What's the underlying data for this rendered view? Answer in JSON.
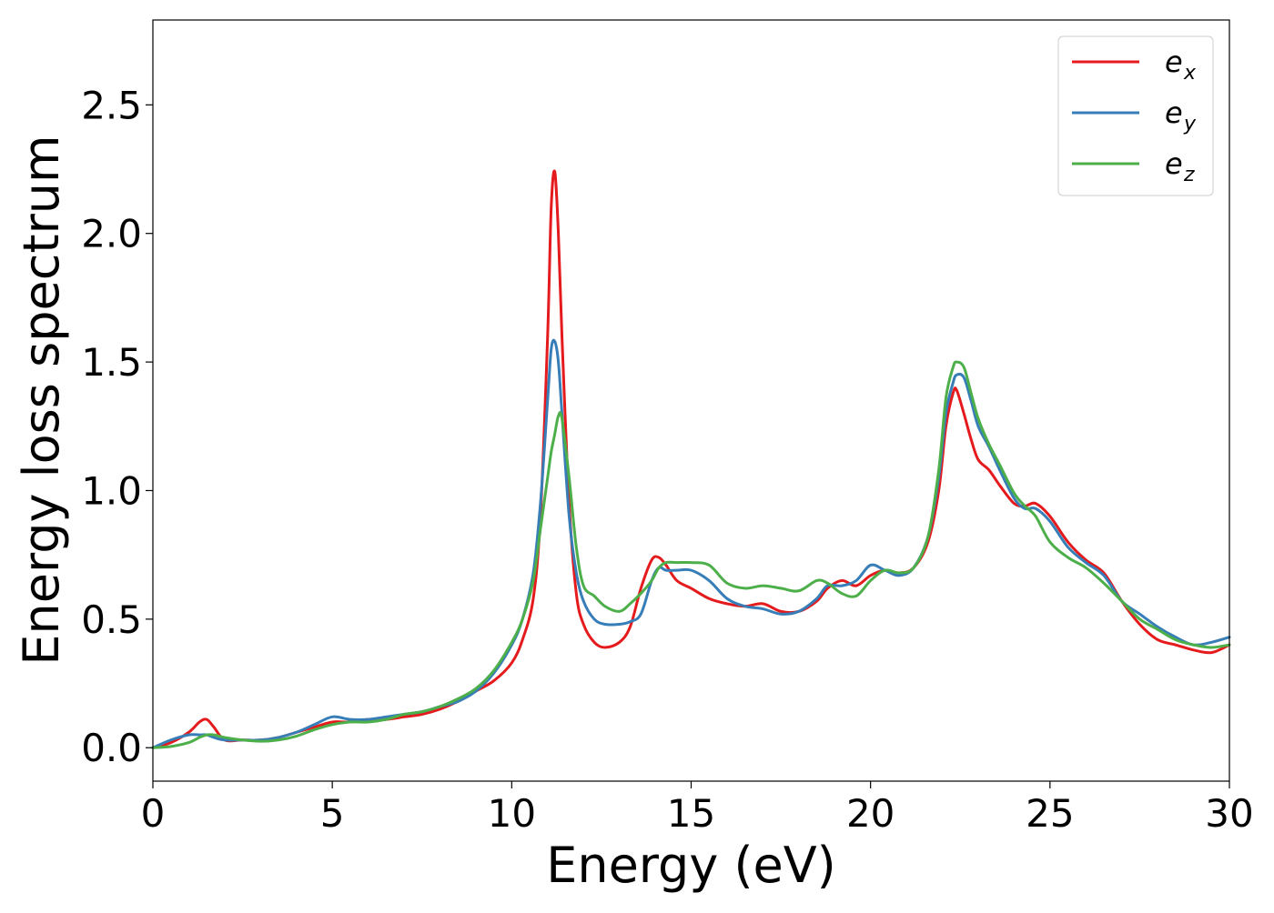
{
  "chart_data": {
    "type": "line",
    "title": "",
    "xlabel": "Energy (eV)",
    "ylabel": "Energy loss spectrum",
    "xlim": [
      0,
      30
    ],
    "ylim": [
      -0.13,
      2.83
    ],
    "xticks": [
      0,
      5,
      10,
      15,
      20,
      25,
      30
    ],
    "xtick_labels": [
      "0",
      "5",
      "10",
      "15",
      "20",
      "25",
      "30"
    ],
    "yticks": [
      0.0,
      0.5,
      1.0,
      1.5,
      2.0,
      2.5
    ],
    "ytick_labels": [
      "0.0",
      "0.5",
      "1.0",
      "1.5",
      "2.0",
      "2.5"
    ],
    "grid": false,
    "legend_position": "top-right",
    "series": [
      {
        "name": "e",
        "name_subscript": "x",
        "color": "#e41a1c",
        "x": [
          0,
          0.5,
          1.0,
          1.3,
          1.5,
          1.7,
          2.0,
          2.5,
          3.0,
          3.5,
          4.0,
          4.5,
          5.0,
          5.5,
          6.0,
          6.5,
          7.0,
          7.5,
          8.0,
          8.5,
          9.0,
          9.5,
          10.0,
          10.3,
          10.6,
          10.8,
          11.0,
          11.1,
          11.2,
          11.3,
          11.4,
          11.6,
          11.8,
          12.0,
          12.3,
          12.6,
          13.0,
          13.3,
          13.6,
          13.9,
          14.1,
          14.3,
          14.6,
          15.0,
          15.5,
          16.0,
          16.5,
          17.0,
          17.5,
          18.0,
          18.5,
          18.8,
          19.2,
          19.6,
          20.0,
          20.4,
          20.8,
          21.2,
          21.6,
          21.9,
          22.1,
          22.3,
          22.4,
          22.6,
          22.8,
          23.0,
          23.3,
          23.6,
          24.0,
          24.3,
          24.6,
          25.0,
          25.5,
          26.0,
          26.5,
          27.0,
          27.5,
          28.0,
          28.5,
          29.0,
          29.5,
          30.0
        ],
        "y": [
          0.0,
          0.02,
          0.06,
          0.1,
          0.11,
          0.08,
          0.03,
          0.03,
          0.03,
          0.04,
          0.06,
          0.08,
          0.1,
          0.1,
          0.11,
          0.11,
          0.12,
          0.13,
          0.15,
          0.18,
          0.22,
          0.26,
          0.33,
          0.42,
          0.58,
          0.9,
          1.6,
          2.1,
          2.24,
          2.0,
          1.6,
          0.95,
          0.6,
          0.48,
          0.41,
          0.39,
          0.41,
          0.47,
          0.62,
          0.73,
          0.74,
          0.71,
          0.65,
          0.62,
          0.58,
          0.56,
          0.55,
          0.56,
          0.53,
          0.53,
          0.57,
          0.62,
          0.65,
          0.63,
          0.67,
          0.69,
          0.68,
          0.7,
          0.8,
          1.0,
          1.25,
          1.38,
          1.39,
          1.3,
          1.2,
          1.12,
          1.08,
          1.02,
          0.95,
          0.94,
          0.95,
          0.9,
          0.8,
          0.73,
          0.68,
          0.57,
          0.48,
          0.42,
          0.4,
          0.38,
          0.37,
          0.4
        ]
      },
      {
        "name": "e",
        "name_subscript": "y",
        "color": "#377eb8",
        "x": [
          0,
          0.5,
          1.0,
          1.3,
          1.5,
          1.7,
          2.0,
          2.5,
          3.0,
          3.5,
          4.0,
          4.5,
          5.0,
          5.5,
          6.0,
          6.5,
          7.0,
          7.5,
          8.0,
          8.5,
          9.0,
          9.5,
          10.0,
          10.3,
          10.6,
          10.8,
          11.0,
          11.1,
          11.2,
          11.3,
          11.4,
          11.6,
          11.8,
          12.0,
          12.3,
          12.6,
          13.0,
          13.3,
          13.6,
          13.9,
          14.1,
          14.3,
          14.6,
          15.0,
          15.5,
          16.0,
          16.5,
          17.0,
          17.5,
          18.0,
          18.5,
          18.8,
          19.2,
          19.6,
          20.0,
          20.4,
          20.8,
          21.2,
          21.6,
          21.9,
          22.1,
          22.3,
          22.4,
          22.6,
          22.8,
          23.0,
          23.3,
          23.6,
          24.0,
          24.3,
          24.6,
          25.0,
          25.5,
          26.0,
          26.5,
          27.0,
          27.5,
          28.0,
          28.5,
          29.0,
          29.5,
          30.0
        ],
        "y": [
          0.0,
          0.03,
          0.05,
          0.05,
          0.05,
          0.04,
          0.03,
          0.03,
          0.03,
          0.04,
          0.06,
          0.09,
          0.12,
          0.11,
          0.11,
          0.12,
          0.13,
          0.14,
          0.16,
          0.18,
          0.22,
          0.29,
          0.4,
          0.5,
          0.68,
          0.95,
          1.35,
          1.55,
          1.58,
          1.5,
          1.3,
          0.9,
          0.68,
          0.57,
          0.5,
          0.48,
          0.48,
          0.49,
          0.52,
          0.65,
          0.7,
          0.69,
          0.69,
          0.69,
          0.65,
          0.58,
          0.55,
          0.54,
          0.52,
          0.53,
          0.58,
          0.63,
          0.63,
          0.65,
          0.71,
          0.69,
          0.67,
          0.7,
          0.82,
          1.05,
          1.3,
          1.42,
          1.45,
          1.44,
          1.35,
          1.25,
          1.17,
          1.08,
          0.97,
          0.93,
          0.93,
          0.88,
          0.78,
          0.72,
          0.67,
          0.57,
          0.52,
          0.47,
          0.43,
          0.4,
          0.41,
          0.43
        ]
      },
      {
        "name": "e",
        "name_subscript": "z",
        "color": "#4daf4a",
        "x": [
          0,
          0.5,
          1.0,
          1.3,
          1.5,
          1.7,
          2.0,
          2.5,
          3.0,
          3.5,
          4.0,
          4.5,
          5.0,
          5.5,
          6.0,
          6.5,
          7.0,
          7.5,
          8.0,
          8.5,
          9.0,
          9.5,
          10.0,
          10.3,
          10.6,
          10.8,
          11.0,
          11.1,
          11.2,
          11.3,
          11.4,
          11.6,
          11.8,
          12.0,
          12.3,
          12.6,
          13.0,
          13.3,
          13.6,
          13.9,
          14.1,
          14.3,
          14.6,
          15.0,
          15.5,
          16.0,
          16.5,
          17.0,
          17.5,
          18.0,
          18.5,
          18.8,
          19.2,
          19.6,
          20.0,
          20.4,
          20.8,
          21.2,
          21.6,
          21.9,
          22.1,
          22.3,
          22.4,
          22.6,
          22.8,
          23.0,
          23.3,
          23.6,
          24.0,
          24.3,
          24.6,
          25.0,
          25.5,
          26.0,
          26.5,
          27.0,
          27.5,
          28.0,
          28.5,
          29.0,
          29.5,
          30.0
        ],
        "y": [
          0.0,
          0.005,
          0.02,
          0.04,
          0.05,
          0.05,
          0.04,
          0.03,
          0.025,
          0.03,
          0.045,
          0.07,
          0.09,
          0.1,
          0.1,
          0.11,
          0.13,
          0.14,
          0.16,
          0.19,
          0.23,
          0.3,
          0.41,
          0.5,
          0.65,
          0.85,
          1.05,
          1.15,
          1.22,
          1.29,
          1.28,
          1.05,
          0.78,
          0.63,
          0.59,
          0.55,
          0.53,
          0.56,
          0.6,
          0.65,
          0.7,
          0.72,
          0.72,
          0.72,
          0.71,
          0.64,
          0.62,
          0.63,
          0.62,
          0.61,
          0.65,
          0.64,
          0.6,
          0.59,
          0.65,
          0.69,
          0.68,
          0.7,
          0.82,
          1.08,
          1.36,
          1.48,
          1.5,
          1.48,
          1.38,
          1.28,
          1.18,
          1.1,
          0.99,
          0.94,
          0.9,
          0.8,
          0.74,
          0.7,
          0.64,
          0.57,
          0.5,
          0.46,
          0.42,
          0.4,
          0.39,
          0.4
        ]
      }
    ]
  }
}
